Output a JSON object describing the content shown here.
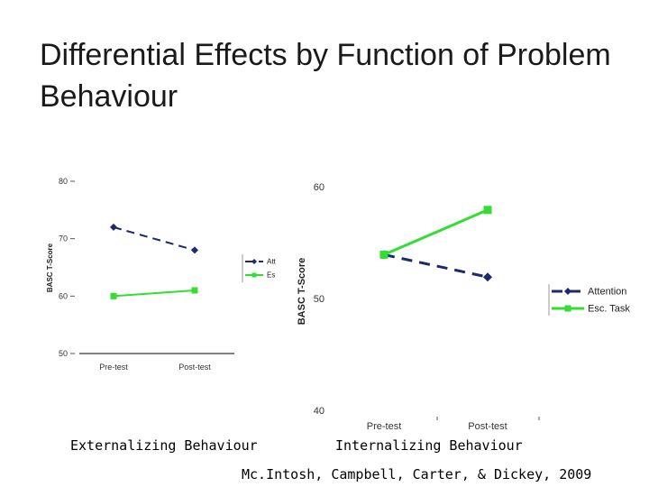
{
  "slide": {
    "title": "Differential Effects by Function of Problem Behaviour",
    "citation": "Mc.Intosh, Campbell, Carter, & Dickey, 2009"
  },
  "colors": {
    "attention": "#1c2a6e",
    "esc_task": "#33dd33"
  },
  "chart_data": [
    {
      "type": "line",
      "caption": "Externalizing Behaviour",
      "ylabel": "BASC T-Score",
      "categories": [
        "Pre-test",
        "Post-test"
      ],
      "ylim": [
        50,
        80
      ],
      "yticks": [
        50,
        60,
        70,
        80
      ],
      "ytick_labels": [
        "50",
        "60",
        "70",
        "80"
      ],
      "series": [
        {
          "name": "Attention",
          "legend_label": "Att",
          "values": [
            72,
            68
          ]
        },
        {
          "name": "Esc. Task",
          "legend_label": "Es",
          "values": [
            60,
            61
          ]
        }
      ],
      "legend": "right-clipped"
    },
    {
      "type": "line",
      "caption": "Internalizing Behaviour",
      "ylabel": "BASC T-Score",
      "categories": [
        "Pre-test",
        "Post-test"
      ],
      "ylim": [
        40,
        60
      ],
      "yticks": [
        40,
        50,
        60
      ],
      "ytick_labels": [
        "40",
        "50",
        "60"
      ],
      "series": [
        {
          "name": "Attention",
          "legend_label": "Attention",
          "values": [
            54,
            52
          ]
        },
        {
          "name": "Esc. Task",
          "legend_label": "Esc. Task",
          "values": [
            54,
            58
          ]
        }
      ],
      "legend": "right"
    }
  ]
}
